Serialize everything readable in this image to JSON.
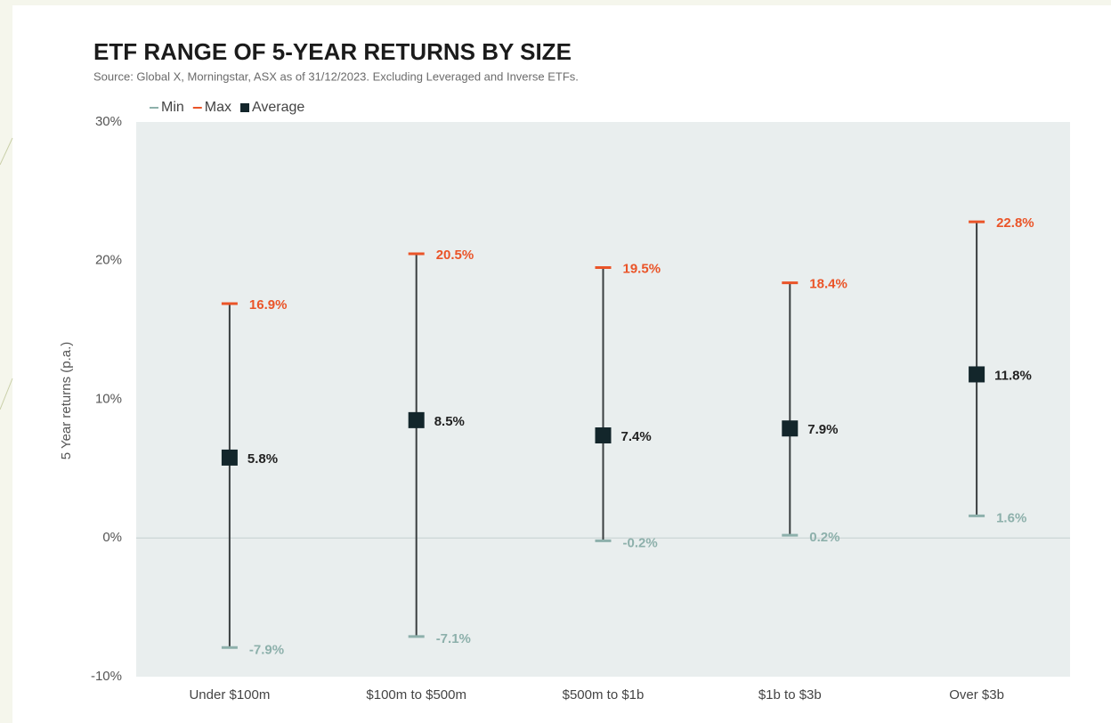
{
  "chart_data": {
    "type": "range",
    "title": "ETF RANGE OF 5-YEAR RETURNS BY SIZE",
    "subtitle": "Source: Global X, Morningstar, ASX as of 31/12/2023. Excluding Leveraged and Inverse ETFs.",
    "y_label": "5 Year returns (p.a.)",
    "categories": [
      "Under $100m",
      "$100m to $500m",
      "$500m to $1b",
      "$1b to $3b",
      "Over $3b"
    ],
    "series": [
      {
        "name": "Min",
        "color": "#8db0ab",
        "values": [
          -7.9,
          -7.1,
          -0.2,
          0.2,
          1.6
        ],
        "value_labels": [
          "-7.9%",
          "-7.1%",
          "-0.2%",
          "0.2%",
          "1.6%"
        ]
      },
      {
        "name": "Max",
        "color": "#ea5428",
        "values": [
          16.9,
          20.5,
          19.5,
          18.4,
          22.8
        ],
        "value_labels": [
          "16.9%",
          "20.5%",
          "19.5%",
          "18.4%",
          "22.8%"
        ]
      },
      {
        "name": "Average",
        "color": "#13262b",
        "values": [
          5.8,
          8.5,
          7.4,
          7.9,
          11.8
        ],
        "value_labels": [
          "5.8%",
          "8.5%",
          "7.4%",
          "7.9%",
          "11.8%"
        ]
      }
    ],
    "ylim": [
      -10,
      30
    ],
    "yticks": [
      {
        "value": -10,
        "label": "-10%"
      },
      {
        "value": 0,
        "label": "0%"
      },
      {
        "value": 10,
        "label": "10%"
      },
      {
        "value": 20,
        "label": "20%"
      },
      {
        "value": 30,
        "label": "30%"
      }
    ],
    "grid": false
  }
}
